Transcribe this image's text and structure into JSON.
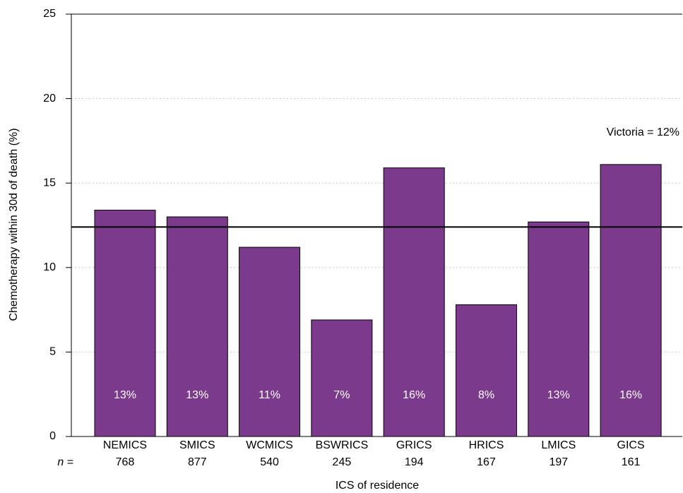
{
  "chart_data": {
    "type": "bar",
    "x_label": "ICS of residence",
    "y_label": "Chemotherapy within 30d of death (%)",
    "categories": [
      "NEMICS",
      "SMICS",
      "WCMICS",
      "BSWRICS",
      "GRICS",
      "HRICS",
      "LMICS",
      "GICS"
    ],
    "values": [
      13.4,
      13.0,
      11.2,
      6.9,
      15.9,
      7.8,
      12.7,
      16.1
    ],
    "value_labels": [
      "13%",
      "13%",
      "11%",
      "7%",
      "16%",
      "8%",
      "13%",
      "16%"
    ],
    "n_label": "n =",
    "n_values": [
      768,
      877,
      540,
      245,
      194,
      167,
      197,
      161
    ],
    "color": "#7b3a8c",
    "ylim": [
      0,
      25
    ],
    "yticks": [
      0,
      5,
      10,
      15,
      20,
      25
    ],
    "grid": true,
    "reference_line": {
      "value": 12.4,
      "label": "Victoria = 12%"
    }
  }
}
